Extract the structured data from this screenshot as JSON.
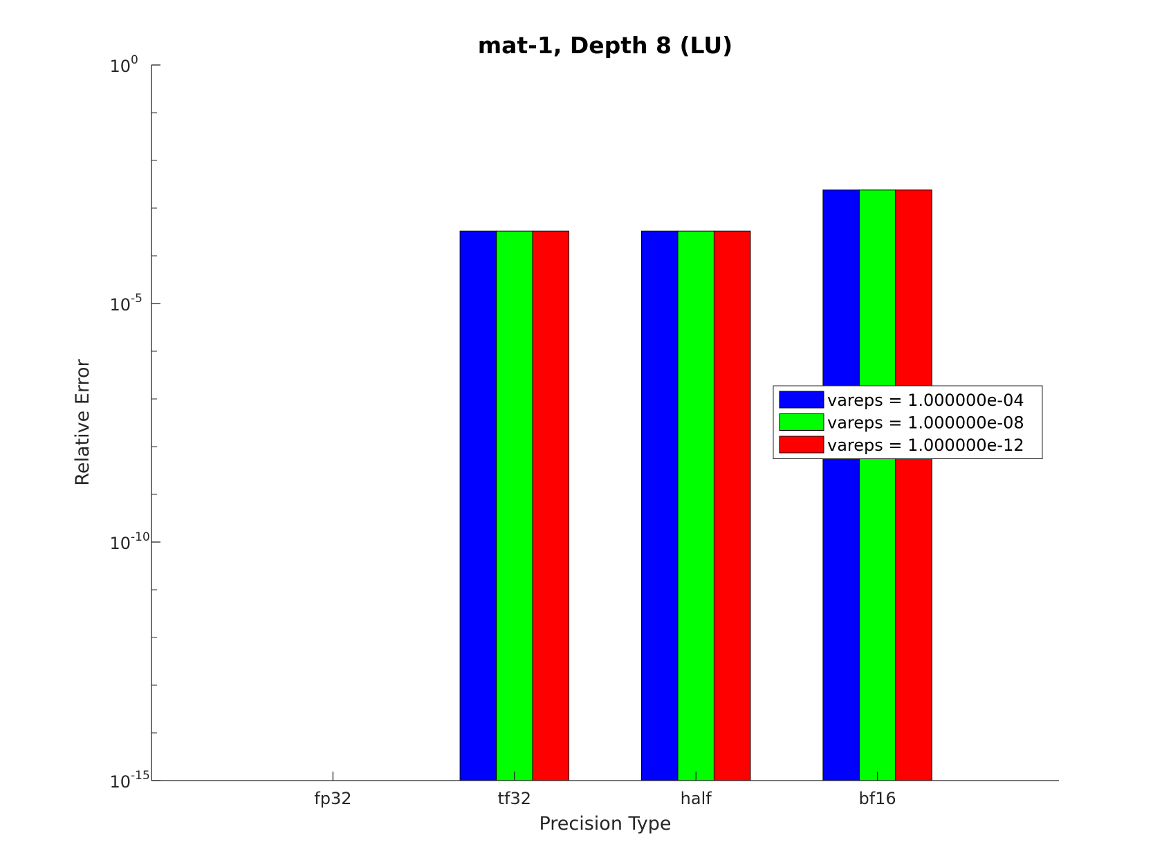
{
  "chart_data": {
    "type": "bar",
    "title": "mat-1, Depth 8 (LU)",
    "xlabel": "Precision Type",
    "ylabel": "Relative Error",
    "yscale": "log",
    "ylim": [
      1e-15,
      1
    ],
    "yticks": [
      {
        "value": 1e-15,
        "base": "10",
        "exp": "-15"
      },
      {
        "value": 1e-10,
        "base": "10",
        "exp": "-10"
      },
      {
        "value": 1e-05,
        "base": "10",
        "exp": "-5"
      },
      {
        "value": 1,
        "base": "10",
        "exp": "0"
      }
    ],
    "categories": [
      "fp32",
      "tf32",
      "half",
      "bf16"
    ],
    "series": [
      {
        "name": "vareps = 1.000000e-04",
        "color": "#0000ff",
        "values": [
          null,
          0.00033,
          0.00033,
          0.0024
        ]
      },
      {
        "name": "vareps = 1.000000e-08",
        "color": "#00ff00",
        "values": [
          null,
          0.00033,
          0.00033,
          0.0024
        ]
      },
      {
        "name": "vareps = 1.000000e-12",
        "color": "#ff0000",
        "values": [
          null,
          0.00033,
          0.00033,
          0.0024
        ]
      }
    ],
    "legend_position": "right-middle",
    "grid": false
  }
}
